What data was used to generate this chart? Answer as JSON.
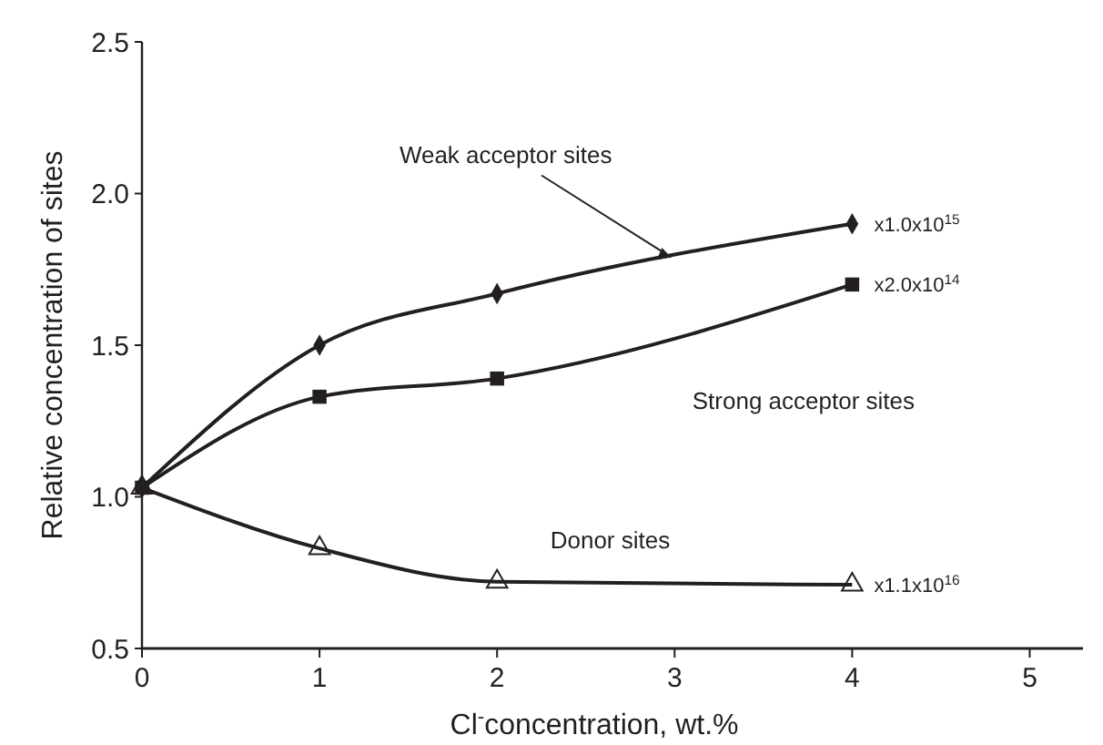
{
  "chart_data": {
    "type": "line",
    "xlabel": "Cl$^{-}$concentration, wt.%",
    "ylabel": "Relative concentration of sites",
    "xlim": [
      0,
      5.3
    ],
    "xticks": [
      0,
      1,
      2,
      3,
      4,
      5
    ],
    "ylim": [
      0.5,
      2.5
    ],
    "yticks": [
      {
        "value": 0.5,
        "label": "0.5"
      },
      {
        "value": 1,
        "label": "1.0"
      },
      {
        "value": 1.5,
        "label": "1.5"
      },
      {
        "value": 2,
        "label": "2.0"
      },
      {
        "value": 2.5,
        "label": "2.5"
      }
    ],
    "grid": false,
    "legend": false,
    "line_style": "solid",
    "x": [
      0,
      1,
      2,
      4
    ],
    "series": [
      {
        "name": "Weak acceptor sites",
        "color": "#231f20",
        "marker": "diamond",
        "values": [
          1.03,
          1.5,
          1.67,
          1.9
        ]
      },
      {
        "name": "Strong acceptor sites",
        "color": "#231f20",
        "marker": "square",
        "values": [
          1.03,
          1.33,
          1.39,
          1.7
        ]
      },
      {
        "name": "Donor sites",
        "color": "#231f20",
        "marker": "triangle",
        "values": [
          1.03,
          0.83,
          0.72,
          0.71
        ]
      }
    ],
    "annotations": [
      "x1.0x10$^{15}$",
      "x2.0x10$^{14}$",
      "x1.1x10$^{16}$"
    ]
  }
}
